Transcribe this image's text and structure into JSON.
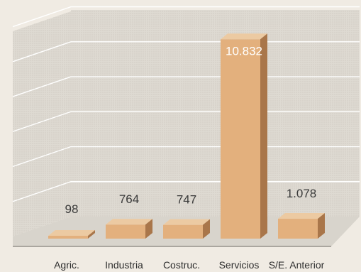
{
  "chart_data": {
    "type": "bar",
    "categories": [
      "Agric.",
      "Industria",
      "Costruc.",
      "Servicios",
      "S/E. Anterior"
    ],
    "values": [
      98,
      764,
      747,
      10832,
      1078
    ],
    "value_labels": [
      "98",
      "764",
      "747",
      "10.832",
      "1.078"
    ],
    "ylim": [
      0,
      12000
    ],
    "grid": true,
    "style": "3d-bar",
    "colors": {
      "bar_front": "#e3b07d",
      "bar_top": "#eccaa2",
      "bar_side": "#a9764a",
      "wall": "#dedad2",
      "floor": "#d8d4cc",
      "background": "#f0ebe3",
      "grid": "#ffffff"
    }
  }
}
